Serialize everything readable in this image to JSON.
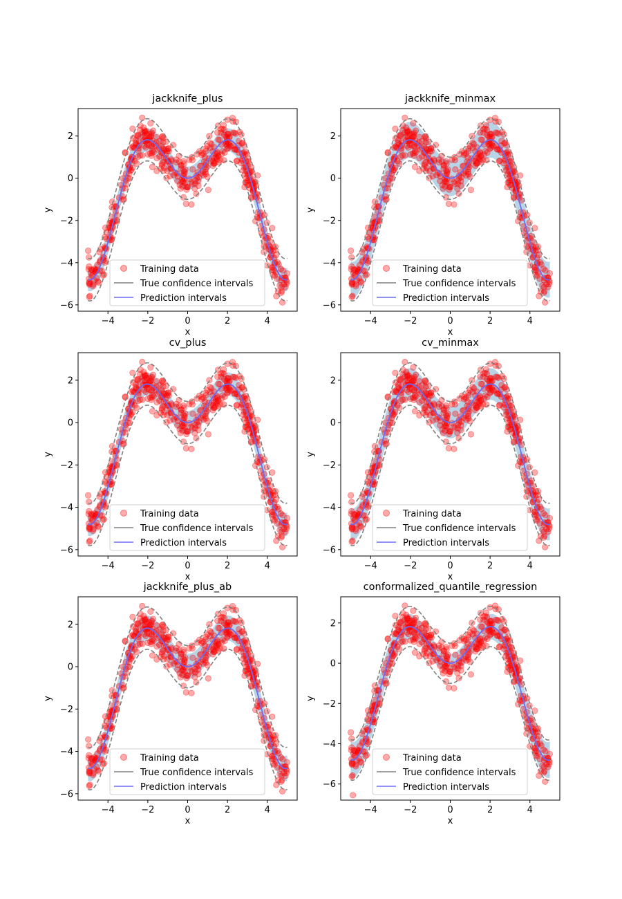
{
  "chart_data": [
    {
      "type": "scatter",
      "title": "jackknife_plus",
      "xlabel": "x",
      "ylabel": "y",
      "xlim": [
        -5.5,
        5.5
      ],
      "ylim": [
        -6.3,
        3.3
      ],
      "xticks": [
        -4,
        -2,
        0,
        2,
        4
      ],
      "yticks": [
        -6,
        -4,
        -2,
        0,
        2
      ],
      "legend": [
        "Training data",
        "True confidence intervals",
        "Prediction intervals"
      ],
      "legend_loc": "lower center",
      "interval_half_width": 0.55
    },
    {
      "type": "scatter",
      "title": "jackknife_minmax",
      "xlabel": "x",
      "ylabel": "y",
      "xlim": [
        -5.5,
        5.5
      ],
      "ylim": [
        -6.3,
        3.3
      ],
      "xticks": [
        -4,
        -2,
        0,
        2,
        4
      ],
      "yticks": [
        -6,
        -4,
        -2,
        0,
        2
      ],
      "legend": [
        "Training data",
        "True confidence intervals",
        "Prediction intervals"
      ],
      "legend_loc": "lower center",
      "interval_half_width": 0.85
    },
    {
      "type": "scatter",
      "title": "cv_plus",
      "xlabel": "x",
      "ylabel": "y",
      "xlim": [
        -5.5,
        5.5
      ],
      "ylim": [
        -6.3,
        3.3
      ],
      "xticks": [
        -4,
        -2,
        0,
        2,
        4
      ],
      "yticks": [
        -6,
        -4,
        -2,
        0,
        2
      ],
      "legend": [
        "Training data",
        "True confidence intervals",
        "Prediction intervals"
      ],
      "legend_loc": "lower center",
      "interval_half_width": 0.55
    },
    {
      "type": "scatter",
      "title": "cv_minmax",
      "xlabel": "x",
      "ylabel": "y",
      "xlim": [
        -5.5,
        5.5
      ],
      "ylim": [
        -6.3,
        3.3
      ],
      "xticks": [
        -4,
        -2,
        0,
        2,
        4
      ],
      "yticks": [
        -6,
        -4,
        -2,
        0,
        2
      ],
      "legend": [
        "Training data",
        "True confidence intervals",
        "Prediction intervals"
      ],
      "legend_loc": "lower center",
      "interval_half_width": 0.75
    },
    {
      "type": "scatter",
      "title": "jackknife_plus_ab",
      "xlabel": "x",
      "ylabel": "y",
      "xlim": [
        -5.5,
        5.5
      ],
      "ylim": [
        -6.3,
        3.3
      ],
      "xticks": [
        -4,
        -2,
        0,
        2,
        4
      ],
      "yticks": [
        -6,
        -4,
        -2,
        0,
        2
      ],
      "legend": [
        "Training data",
        "True confidence intervals",
        "Prediction intervals"
      ],
      "legend_loc": "lower center",
      "interval_half_width": 0.6
    },
    {
      "type": "scatter",
      "title": "conformalized_quantile_regression",
      "xlabel": "x",
      "ylabel": "y",
      "xlim": [
        -5.5,
        5.5
      ],
      "ylim": [
        -6.8,
        3.3
      ],
      "xticks": [
        -4,
        -2,
        0,
        2,
        4
      ],
      "yticks": [
        -6,
        -4,
        -2,
        0,
        2
      ],
      "legend": [
        "Training data",
        "True confidence intervals",
        "Prediction intervals"
      ],
      "legend_loc": "lower center",
      "interval_half_width": 0.75
    }
  ],
  "colors": {
    "points": "#ff0000",
    "true_ci": "#808080",
    "prediction": "#6b6bf5",
    "band": "#b4d2e6"
  }
}
